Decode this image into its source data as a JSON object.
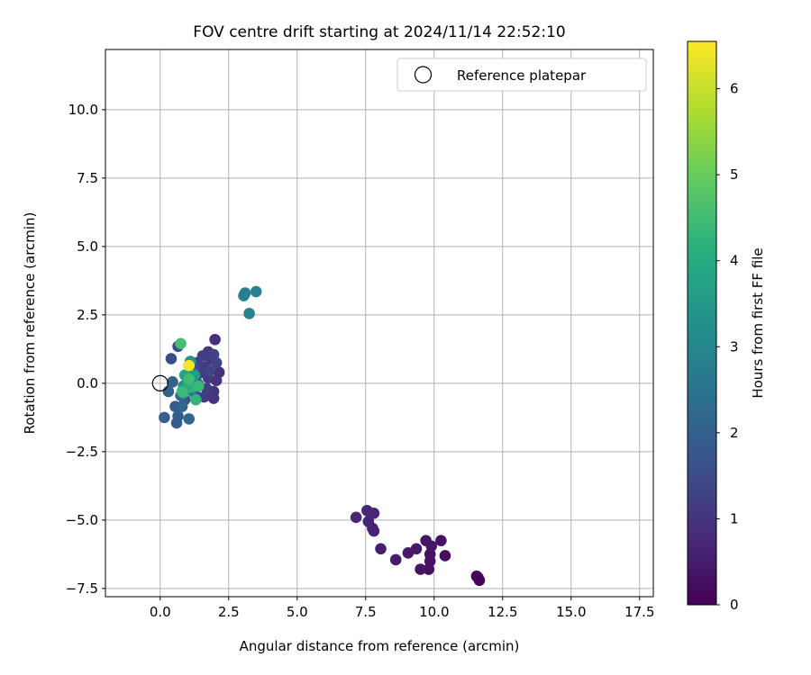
{
  "chart_data": {
    "type": "scatter",
    "title": "FOV centre drift starting at 2024/11/14 22:52:10",
    "xlabel": "Angular distance from reference (arcmin)",
    "ylabel": "Rotation from reference (arcmin)",
    "xlim": [
      -2.0,
      18.0
    ],
    "ylim": [
      -7.8,
      12.2
    ],
    "xticks": [
      0.0,
      2.5,
      5.0,
      7.5,
      10.0,
      12.5,
      15.0,
      17.5
    ],
    "xtick_labels": [
      "0.0",
      "2.5",
      "5.0",
      "7.5",
      "10.0",
      "12.5",
      "15.0",
      "17.5"
    ],
    "yticks": [
      -7.5,
      -5.0,
      -2.5,
      0.0,
      2.5,
      5.0,
      7.5,
      10.0
    ],
    "ytick_labels": [
      "−7.5",
      "−5.0",
      "−2.5",
      "0.0",
      "2.5",
      "5.0",
      "7.5",
      "10.0"
    ],
    "grid": true,
    "legend": {
      "position": "top-right",
      "entries": [
        "Reference platepar"
      ]
    },
    "reference_point": {
      "x": 0.0,
      "y": 0.0,
      "marker": "open-circle"
    },
    "colorbar": {
      "label": "Hours from first FF file",
      "colormap": "viridis",
      "range": [
        0,
        6.55
      ],
      "ticks": [
        0,
        1,
        2,
        3,
        4,
        5,
        6
      ],
      "tick_labels": [
        "0",
        "1",
        "2",
        "3",
        "4",
        "5",
        "6"
      ]
    },
    "points": [
      {
        "x": 11.6,
        "y": -7.1,
        "c": 0.05
      },
      {
        "x": 11.65,
        "y": -7.2,
        "c": 0.05
      },
      {
        "x": 11.55,
        "y": -7.05,
        "c": 0.1
      },
      {
        "x": 10.4,
        "y": -6.3,
        "c": 0.25
      },
      {
        "x": 9.85,
        "y": -6.5,
        "c": 0.3
      },
      {
        "x": 9.85,
        "y": -6.25,
        "c": 0.3
      },
      {
        "x": 9.8,
        "y": -6.8,
        "c": 0.3
      },
      {
        "x": 9.5,
        "y": -6.8,
        "c": 0.35
      },
      {
        "x": 10.25,
        "y": -5.75,
        "c": 0.35
      },
      {
        "x": 9.7,
        "y": -5.75,
        "c": 0.4
      },
      {
        "x": 9.9,
        "y": -5.95,
        "c": 0.4
      },
      {
        "x": 9.35,
        "y": -6.05,
        "c": 0.45
      },
      {
        "x": 9.05,
        "y": -6.2,
        "c": 0.45
      },
      {
        "x": 8.6,
        "y": -6.45,
        "c": 0.5
      },
      {
        "x": 8.05,
        "y": -6.05,
        "c": 0.55
      },
      {
        "x": 7.8,
        "y": -5.4,
        "c": 0.6
      },
      {
        "x": 7.75,
        "y": -5.3,
        "c": 0.6
      },
      {
        "x": 7.6,
        "y": -5.05,
        "c": 0.65
      },
      {
        "x": 7.8,
        "y": -4.75,
        "c": 0.65
      },
      {
        "x": 7.55,
        "y": -4.65,
        "c": 0.7
      },
      {
        "x": 7.15,
        "y": -4.9,
        "c": 0.7
      },
      {
        "x": 2.0,
        "y": 1.6,
        "c": 0.9
      },
      {
        "x": 2.15,
        "y": 0.4,
        "c": 0.9
      },
      {
        "x": 2.05,
        "y": 0.1,
        "c": 0.95
      },
      {
        "x": 1.95,
        "y": -0.3,
        "c": 0.95
      },
      {
        "x": 1.95,
        "y": -0.55,
        "c": 1.0
      },
      {
        "x": 1.85,
        "y": 0.9,
        "c": 1.05
      },
      {
        "x": 1.75,
        "y": 1.15,
        "c": 1.05
      },
      {
        "x": 1.65,
        "y": 0.6,
        "c": 1.1
      },
      {
        "x": 1.75,
        "y": 0.2,
        "c": 1.1
      },
      {
        "x": 1.7,
        "y": -0.2,
        "c": 1.15
      },
      {
        "x": 1.6,
        "y": -0.5,
        "c": 1.15
      },
      {
        "x": 1.55,
        "y": 1.0,
        "c": 1.2
      },
      {
        "x": 1.5,
        "y": 0.4,
        "c": 1.2
      },
      {
        "x": 1.4,
        "y": -0.05,
        "c": 1.25
      },
      {
        "x": 1.35,
        "y": 0.75,
        "c": 1.3
      },
      {
        "x": 1.95,
        "y": 1.05,
        "c": 1.3
      },
      {
        "x": 2.05,
        "y": 0.75,
        "c": 1.35
      },
      {
        "x": 1.8,
        "y": 0.45,
        "c": 1.35
      },
      {
        "x": 1.3,
        "y": 0.2,
        "c": 1.4
      },
      {
        "x": 1.25,
        "y": -0.35,
        "c": 1.45
      },
      {
        "x": 0.65,
        "y": 1.35,
        "c": 1.5
      },
      {
        "x": 0.4,
        "y": 0.9,
        "c": 1.55
      },
      {
        "x": 1.2,
        "y": 0.55,
        "c": 1.6
      },
      {
        "x": 1.0,
        "y": 0.1,
        "c": 1.65
      },
      {
        "x": 0.9,
        "y": -0.6,
        "c": 1.75
      },
      {
        "x": 0.55,
        "y": -0.85,
        "c": 1.85
      },
      {
        "x": 0.6,
        "y": -1.45,
        "c": 1.9
      },
      {
        "x": 0.65,
        "y": -1.2,
        "c": 1.95
      },
      {
        "x": 0.15,
        "y": -1.25,
        "c": 2.0
      },
      {
        "x": 0.3,
        "y": -0.3,
        "c": 2.0
      },
      {
        "x": 0.45,
        "y": 0.05,
        "c": 2.05
      },
      {
        "x": 1.05,
        "y": -1.3,
        "c": 2.1
      },
      {
        "x": 0.8,
        "y": -0.85,
        "c": 2.1
      },
      {
        "x": 0.75,
        "y": -0.45,
        "c": 2.2
      },
      {
        "x": 1.05,
        "y": 0.65,
        "c": 2.3
      },
      {
        "x": 1.15,
        "y": -0.25,
        "c": 2.4
      },
      {
        "x": 3.1,
        "y": 3.3,
        "c": 2.8
      },
      {
        "x": 3.05,
        "y": 3.2,
        "c": 2.85
      },
      {
        "x": 3.5,
        "y": 3.35,
        "c": 2.9
      },
      {
        "x": 3.25,
        "y": 2.55,
        "c": 2.95
      },
      {
        "x": 0.85,
        "y": -0.1,
        "c": 3.2
      },
      {
        "x": 1.1,
        "y": 0.8,
        "c": 3.4
      },
      {
        "x": 1.25,
        "y": 0.3,
        "c": 3.6
      },
      {
        "x": 0.9,
        "y": 0.3,
        "c": 3.8
      },
      {
        "x": 1.0,
        "y": -0.05,
        "c": 3.9
      },
      {
        "x": 0.85,
        "y": -0.35,
        "c": 4.0
      },
      {
        "x": 1.15,
        "y": -0.15,
        "c": 4.1
      },
      {
        "x": 1.3,
        "y": -0.6,
        "c": 4.25
      },
      {
        "x": 1.4,
        "y": -0.1,
        "c": 4.4
      },
      {
        "x": 0.8,
        "y": -0.3,
        "c": 4.45
      },
      {
        "x": 1.05,
        "y": 0.15,
        "c": 4.5
      },
      {
        "x": 0.75,
        "y": 1.45,
        "c": 4.6
      },
      {
        "x": 1.05,
        "y": 0.65,
        "c": 6.5
      }
    ]
  }
}
